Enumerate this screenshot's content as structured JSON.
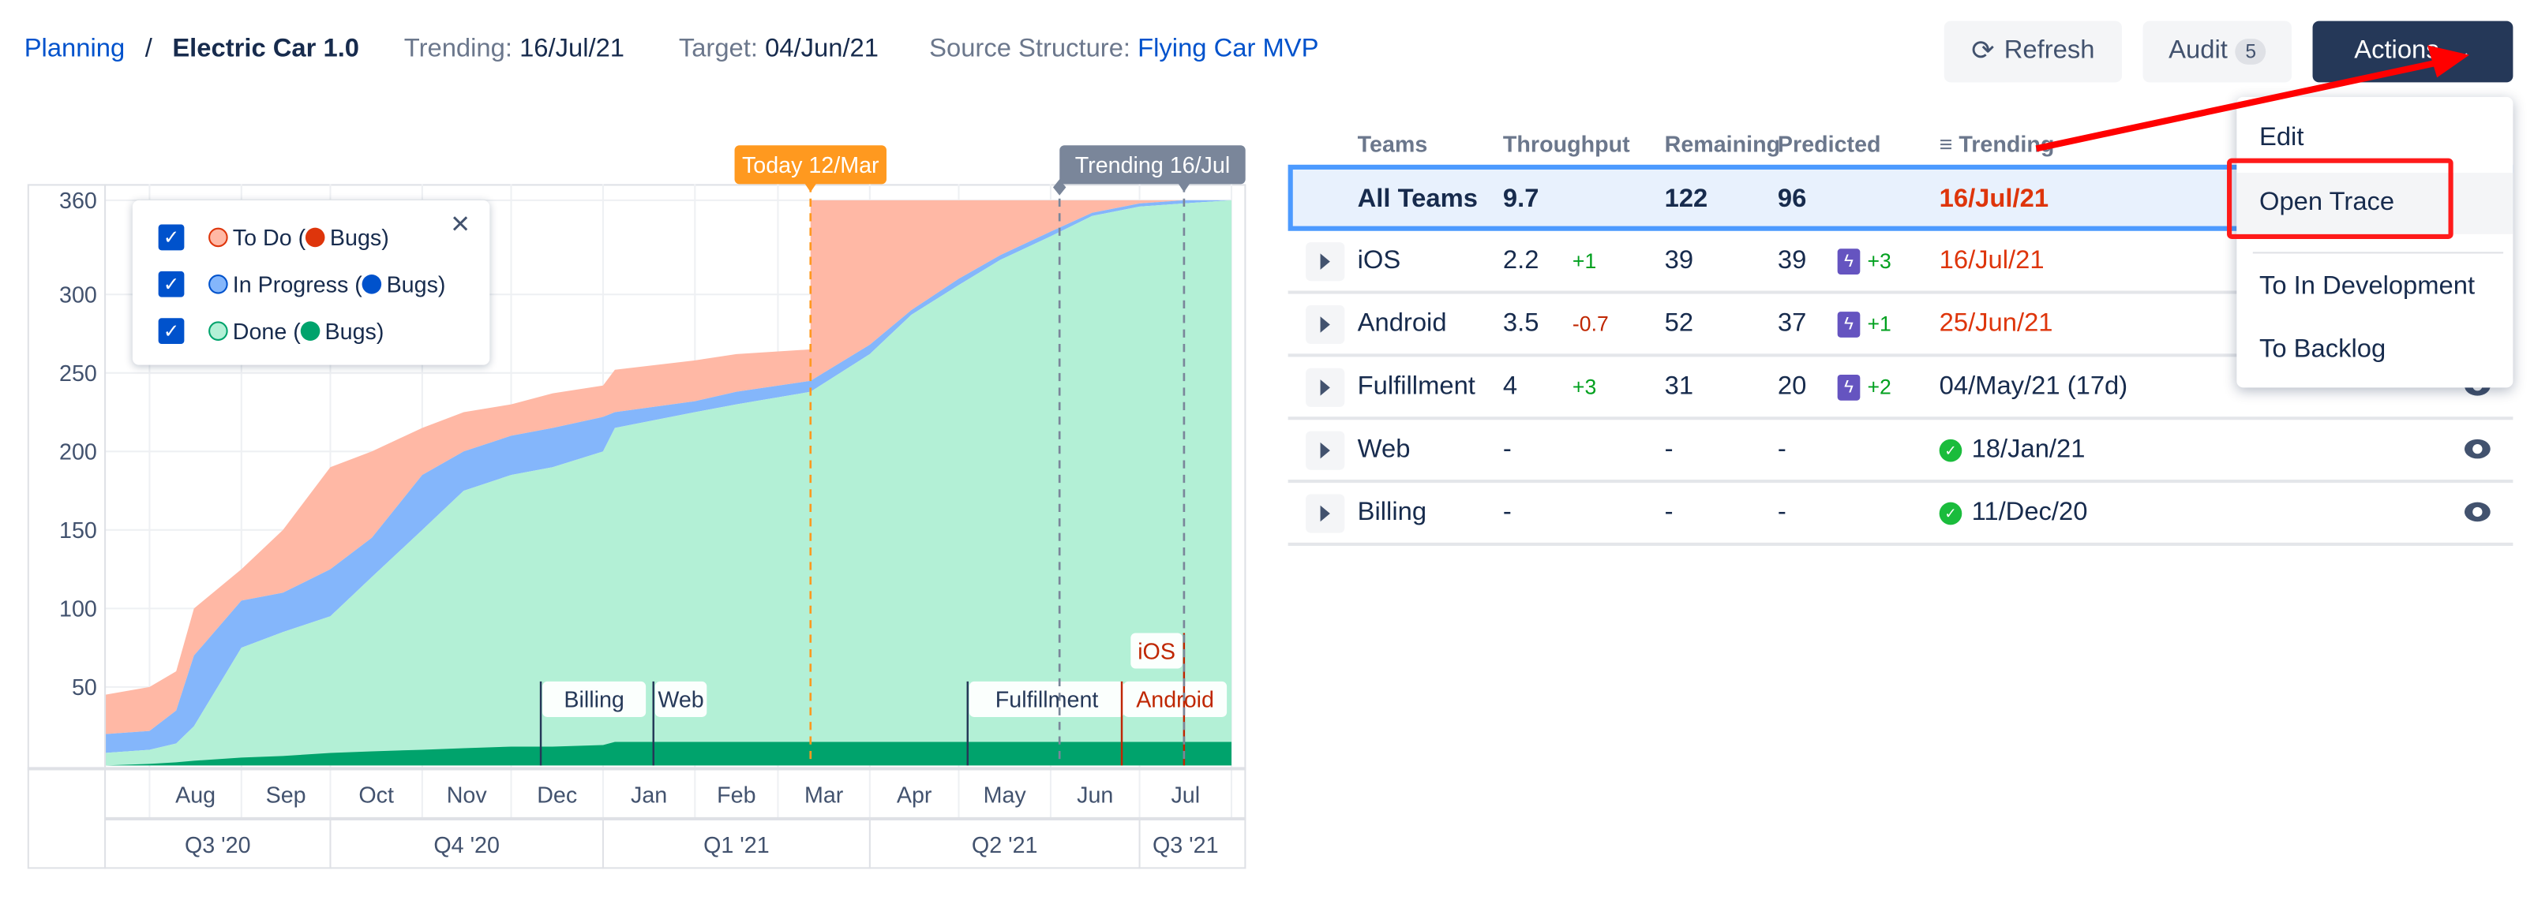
{
  "header": {
    "breadcrumb_root": "Planning",
    "separator": "/",
    "title": "Electric Car 1.0",
    "trending_label": "Trending:",
    "trending_value": "16/Jul/21",
    "target_label": "Target:",
    "target_value": "04/Jun/21",
    "source_label": "Source Structure:",
    "source_value": "Flying Car MVP"
  },
  "toolbar": {
    "refresh_label": "Refresh",
    "refresh_icon": "refresh-icon",
    "audit_label": "Audit",
    "audit_count": "5",
    "actions_label": "Actions",
    "actions_icon": "chevron-down-icon"
  },
  "actions_menu": {
    "items": [
      {
        "label": "Edit"
      },
      {
        "label": "Open Trace",
        "highlighted": true
      },
      {
        "label": "To In Development"
      },
      {
        "label": "To Backlog"
      }
    ]
  },
  "annotation": {
    "arrow_color": "#ff0000",
    "box_color": "#ff0000"
  },
  "table": {
    "headers": [
      "Teams",
      "Throughput",
      "Remaining",
      "Predicted",
      "Trending"
    ],
    "rows": [
      {
        "team": "All Teams",
        "throughput": "9.7",
        "tp_delta": "",
        "remaining": "122",
        "predicted": "96",
        "pred_delta": "",
        "trending": "16/Jul/21",
        "trending_status": "late",
        "selected": true
      },
      {
        "team": "iOS",
        "throughput": "2.2",
        "tp_delta": "+1",
        "remaining": "39",
        "predicted": "39",
        "pred_delta": "+3",
        "trending": "16/Jul/21",
        "trending_status": "late"
      },
      {
        "team": "Android",
        "throughput": "3.5",
        "tp_delta": "-0.7",
        "remaining": "52",
        "predicted": "37",
        "pred_delta": "+1",
        "trending": "25/Jun/21",
        "trending_status": "late"
      },
      {
        "team": "Fulfillment",
        "throughput": "4",
        "tp_delta": "+3",
        "remaining": "31",
        "predicted": "20",
        "pred_delta": "+2",
        "trending": "04/May/21 (17d)",
        "trending_status": "normal"
      },
      {
        "team": "Web",
        "throughput": "-",
        "tp_delta": "",
        "remaining": "-",
        "predicted": "-",
        "pred_delta": "",
        "trending": "18/Jan/21",
        "trending_status": "done"
      },
      {
        "team": "Billing",
        "throughput": "-",
        "tp_delta": "",
        "remaining": "-",
        "predicted": "-",
        "pred_delta": "",
        "trending": "11/Dec/20",
        "trending_status": "done"
      }
    ]
  },
  "legend": {
    "items": [
      {
        "label": "To Do (",
        "bugs": "Bugs)",
        "color": "#ffb8a5",
        "bug_color": "#de350b"
      },
      {
        "label": "In Progress (",
        "bugs": "Bugs)",
        "color": "#84b6fb",
        "bug_color": "#0052cc"
      },
      {
        "label": "Done (",
        "bugs": "Bugs)",
        "color": "#b3f0d6",
        "bug_color": "#00a36c"
      }
    ],
    "close_icon": "close-icon"
  },
  "chart_data": {
    "type": "area",
    "x_range": [
      "2020-07-17",
      "2021-08-01"
    ],
    "ylim": [
      0,
      360
    ],
    "y_ticks": [
      "50",
      "100",
      "150",
      "200",
      "250",
      "300",
      "360"
    ],
    "months": [
      "Aug",
      "Sep",
      "Oct",
      "Nov",
      "Dec",
      "Jan",
      "Feb",
      "Mar",
      "Apr",
      "May",
      "Jun",
      "Jul"
    ],
    "quarters": [
      "Q3 '20",
      "Q4 '20",
      "Q1 '21",
      "Q2 '21",
      "Q3 '21"
    ],
    "x": [
      "2020-07-17",
      "2020-08-01",
      "2020-08-10",
      "2020-08-16",
      "2020-09-01",
      "2020-09-15",
      "2020-10-01",
      "2020-10-15",
      "2020-11-01",
      "2020-11-15",
      "2020-12-01",
      "2020-12-15",
      "2021-01-01",
      "2021-01-05",
      "2021-02-01",
      "2021-02-15",
      "2021-03-12",
      "2021-03-12",
      "2021-04-01",
      "2021-04-15",
      "2021-05-01",
      "2021-05-15",
      "2021-06-01",
      "2021-06-15",
      "2021-07-01",
      "2021-07-16",
      "2021-08-01"
    ],
    "series": [
      {
        "name": "To Do",
        "color": "#ffb8a5",
        "values": [
          45,
          50,
          60,
          100,
          125,
          150,
          190,
          200,
          215,
          225,
          230,
          237,
          242,
          252,
          258,
          262,
          265,
          360,
          360,
          360,
          360,
          360,
          360,
          360,
          360,
          360,
          360
        ]
      },
      {
        "name": "In Progress",
        "color": "#84b6fb",
        "values": [
          20,
          22,
          35,
          70,
          105,
          110,
          125,
          145,
          185,
          200,
          210,
          215,
          222,
          225,
          232,
          238,
          245,
          245,
          268,
          290,
          310,
          325,
          340,
          352,
          358,
          360,
          360
        ]
      },
      {
        "name": "Done",
        "color": "#b3f0d6",
        "values": [
          8,
          10,
          14,
          25,
          75,
          85,
          95,
          120,
          150,
          175,
          185,
          190,
          200,
          215,
          225,
          230,
          238,
          238,
          262,
          287,
          306,
          322,
          337,
          350,
          356,
          358,
          360
        ]
      },
      {
        "name": "Bugs",
        "color": "#00a36c",
        "values": [
          0,
          1,
          2,
          3,
          5,
          6,
          8,
          9,
          10,
          11,
          12,
          12,
          13,
          15,
          15,
          15,
          15,
          15,
          15,
          15,
          15,
          15,
          15,
          15,
          15,
          15,
          15
        ]
      }
    ],
    "markers": [
      {
        "label": "Today 12/Mar",
        "date": "2021-03-12",
        "color": "#ff991f"
      },
      {
        "label": "Trending 16/Jul",
        "date": "2021-07-16",
        "color": "#7a869a"
      },
      {
        "label": "",
        "date": "2021-06-04",
        "color": "#7a869a"
      }
    ],
    "milestones": [
      {
        "label": "Billing",
        "date": "2020-12-11",
        "color": "#253858"
      },
      {
        "label": "Web",
        "date": "2021-01-18",
        "color": "#253858"
      },
      {
        "label": "Fulfillment",
        "date": "2021-05-04",
        "color": "#253858"
      },
      {
        "label": "Android",
        "date": "2021-06-25",
        "color": "#bf2600"
      },
      {
        "label": "iOS",
        "date": "2021-07-16",
        "color": "#bf2600"
      }
    ]
  }
}
